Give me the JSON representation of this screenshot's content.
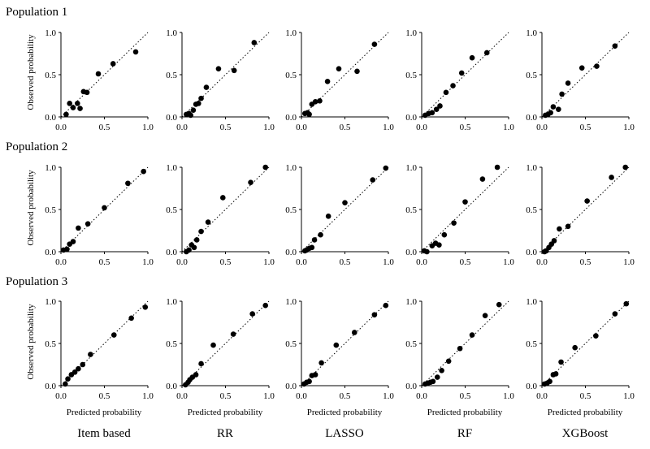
{
  "figure": {
    "row_titles": [
      "Population 1",
      "Population 2",
      "Population 3"
    ],
    "column_titles": [
      "Item based",
      "RR",
      "LASSO",
      "RF",
      "XGBoost"
    ],
    "xlabel": "Predicted probability",
    "ylabel": "Observed probability",
    "tick_labels": [
      "0.0",
      "0.5",
      "1.0"
    ]
  },
  "chart_data": [
    {
      "type": "scatter",
      "population": "Population 1",
      "model": "Item based",
      "xlim": [
        0,
        1
      ],
      "ylim": [
        0,
        1
      ],
      "reference_line": "y=x dotted",
      "x": [
        0.06,
        0.1,
        0.14,
        0.19,
        0.22,
        0.26,
        0.3,
        0.43,
        0.6,
        0.86
      ],
      "y": [
        0.03,
        0.16,
        0.11,
        0.16,
        0.1,
        0.3,
        0.29,
        0.51,
        0.63,
        0.77
      ]
    },
    {
      "type": "scatter",
      "population": "Population 1",
      "model": "RR",
      "xlim": [
        0,
        1
      ],
      "ylim": [
        0,
        1
      ],
      "reference_line": "y=x dotted",
      "x": [
        0.05,
        0.08,
        0.1,
        0.13,
        0.16,
        0.19,
        0.22,
        0.28,
        0.42,
        0.6,
        0.83
      ],
      "y": [
        0.03,
        0.04,
        0.02,
        0.08,
        0.15,
        0.16,
        0.22,
        0.35,
        0.57,
        0.55,
        0.88
      ]
    },
    {
      "type": "scatter",
      "population": "Population 1",
      "model": "LASSO",
      "xlim": [
        0,
        1
      ],
      "ylim": [
        0,
        1
      ],
      "reference_line": "y=x dotted",
      "x": [
        0.04,
        0.07,
        0.09,
        0.12,
        0.16,
        0.21,
        0.3,
        0.43,
        0.64,
        0.84
      ],
      "y": [
        0.04,
        0.05,
        0.03,
        0.15,
        0.18,
        0.19,
        0.42,
        0.57,
        0.54,
        0.86
      ]
    },
    {
      "type": "scatter",
      "population": "Population 1",
      "model": "RF",
      "xlim": [
        0,
        1
      ],
      "ylim": [
        0,
        1
      ],
      "reference_line": "y=x dotted",
      "x": [
        0.04,
        0.08,
        0.12,
        0.17,
        0.21,
        0.28,
        0.36,
        0.46,
        0.58,
        0.75
      ],
      "y": [
        0.02,
        0.04,
        0.05,
        0.09,
        0.13,
        0.29,
        0.37,
        0.52,
        0.7,
        0.76
      ]
    },
    {
      "type": "scatter",
      "population": "Population 1",
      "model": "XGBoost",
      "xlim": [
        0,
        1
      ],
      "ylim": [
        0,
        1
      ],
      "reference_line": "y=x dotted",
      "x": [
        0.04,
        0.07,
        0.1,
        0.13,
        0.19,
        0.23,
        0.3,
        0.46,
        0.63,
        0.84
      ],
      "y": [
        0.02,
        0.03,
        0.05,
        0.12,
        0.09,
        0.27,
        0.4,
        0.58,
        0.6,
        0.84
      ]
    },
    {
      "type": "scatter",
      "population": "Population 2",
      "model": "Item based",
      "xlim": [
        0,
        1
      ],
      "ylim": [
        0,
        1
      ],
      "reference_line": "y=x dotted",
      "x": [
        0.03,
        0.07,
        0.1,
        0.14,
        0.2,
        0.31,
        0.5,
        0.77,
        0.95
      ],
      "y": [
        0.02,
        0.03,
        0.09,
        0.12,
        0.28,
        0.33,
        0.52,
        0.81,
        0.95
      ]
    },
    {
      "type": "scatter",
      "population": "Population 2",
      "model": "RR",
      "xlim": [
        0,
        1
      ],
      "ylim": [
        0,
        1
      ],
      "reference_line": "y=x dotted",
      "x": [
        0.05,
        0.08,
        0.11,
        0.14,
        0.17,
        0.22,
        0.3,
        0.47,
        0.79,
        0.96
      ],
      "y": [
        0.0,
        0.02,
        0.08,
        0.05,
        0.14,
        0.24,
        0.35,
        0.64,
        0.82,
        1.0
      ]
    },
    {
      "type": "scatter",
      "population": "Population 2",
      "model": "LASSO",
      "xlim": [
        0,
        1
      ],
      "ylim": [
        0,
        1
      ],
      "reference_line": "y=x dotted",
      "x": [
        0.04,
        0.06,
        0.09,
        0.12,
        0.15,
        0.22,
        0.31,
        0.5,
        0.82,
        0.97
      ],
      "y": [
        0.01,
        0.02,
        0.04,
        0.05,
        0.14,
        0.2,
        0.42,
        0.58,
        0.85,
        0.99
      ]
    },
    {
      "type": "scatter",
      "population": "Population 2",
      "model": "RF",
      "xlim": [
        0,
        1
      ],
      "ylim": [
        0,
        1
      ],
      "reference_line": "y=x dotted",
      "x": [
        0.03,
        0.06,
        0.12,
        0.16,
        0.2,
        0.26,
        0.37,
        0.5,
        0.7,
        0.87
      ],
      "y": [
        0.01,
        0.0,
        0.07,
        0.1,
        0.08,
        0.2,
        0.34,
        0.59,
        0.86,
        1.0
      ]
    },
    {
      "type": "scatter",
      "population": "Population 2",
      "model": "XGBoost",
      "xlim": [
        0,
        1
      ],
      "ylim": [
        0,
        1
      ],
      "reference_line": "y=x dotted",
      "x": [
        0.03,
        0.05,
        0.08,
        0.11,
        0.14,
        0.2,
        0.3,
        0.52,
        0.8,
        0.96
      ],
      "y": [
        0.0,
        0.01,
        0.05,
        0.09,
        0.13,
        0.27,
        0.3,
        0.6,
        0.88,
        1.0
      ]
    },
    {
      "type": "scatter",
      "population": "Population 3",
      "model": "Item based",
      "xlim": [
        0,
        1
      ],
      "ylim": [
        0,
        1
      ],
      "reference_line": "y=x dotted",
      "x": [
        0.05,
        0.08,
        0.12,
        0.16,
        0.2,
        0.25,
        0.34,
        0.61,
        0.81,
        0.97
      ],
      "y": [
        0.02,
        0.08,
        0.13,
        0.16,
        0.2,
        0.25,
        0.37,
        0.6,
        0.8,
        0.93
      ]
    },
    {
      "type": "scatter",
      "population": "Population 3",
      "model": "RR",
      "xlim": [
        0,
        1
      ],
      "ylim": [
        0,
        1
      ],
      "reference_line": "y=x dotted",
      "x": [
        0.04,
        0.07,
        0.09,
        0.12,
        0.16,
        0.22,
        0.36,
        0.59,
        0.81,
        0.96
      ],
      "y": [
        0.01,
        0.04,
        0.07,
        0.1,
        0.13,
        0.26,
        0.48,
        0.61,
        0.85,
        0.95
      ]
    },
    {
      "type": "scatter",
      "population": "Population 3",
      "model": "LASSO",
      "xlim": [
        0,
        1
      ],
      "ylim": [
        0,
        1
      ],
      "reference_line": "y=x dotted",
      "x": [
        0.03,
        0.06,
        0.09,
        0.12,
        0.16,
        0.23,
        0.4,
        0.61,
        0.84,
        0.97
      ],
      "y": [
        0.02,
        0.04,
        0.05,
        0.12,
        0.13,
        0.27,
        0.48,
        0.63,
        0.84,
        0.95
      ]
    },
    {
      "type": "scatter",
      "population": "Population 3",
      "model": "RF",
      "xlim": [
        0,
        1
      ],
      "ylim": [
        0,
        1
      ],
      "reference_line": "y=x dotted",
      "x": [
        0.04,
        0.07,
        0.1,
        0.13,
        0.18,
        0.23,
        0.31,
        0.44,
        0.58,
        0.73,
        0.89
      ],
      "y": [
        0.02,
        0.03,
        0.04,
        0.05,
        0.1,
        0.18,
        0.29,
        0.44,
        0.6,
        0.83,
        0.96
      ]
    },
    {
      "type": "scatter",
      "population": "Population 3",
      "model": "XGBoost",
      "xlim": [
        0,
        1
      ],
      "ylim": [
        0,
        1
      ],
      "reference_line": "y=x dotted",
      "x": [
        0.03,
        0.06,
        0.09,
        0.13,
        0.16,
        0.22,
        0.38,
        0.62,
        0.84,
        0.97
      ],
      "y": [
        0.02,
        0.03,
        0.05,
        0.13,
        0.14,
        0.28,
        0.45,
        0.59,
        0.85,
        0.97
      ]
    }
  ]
}
